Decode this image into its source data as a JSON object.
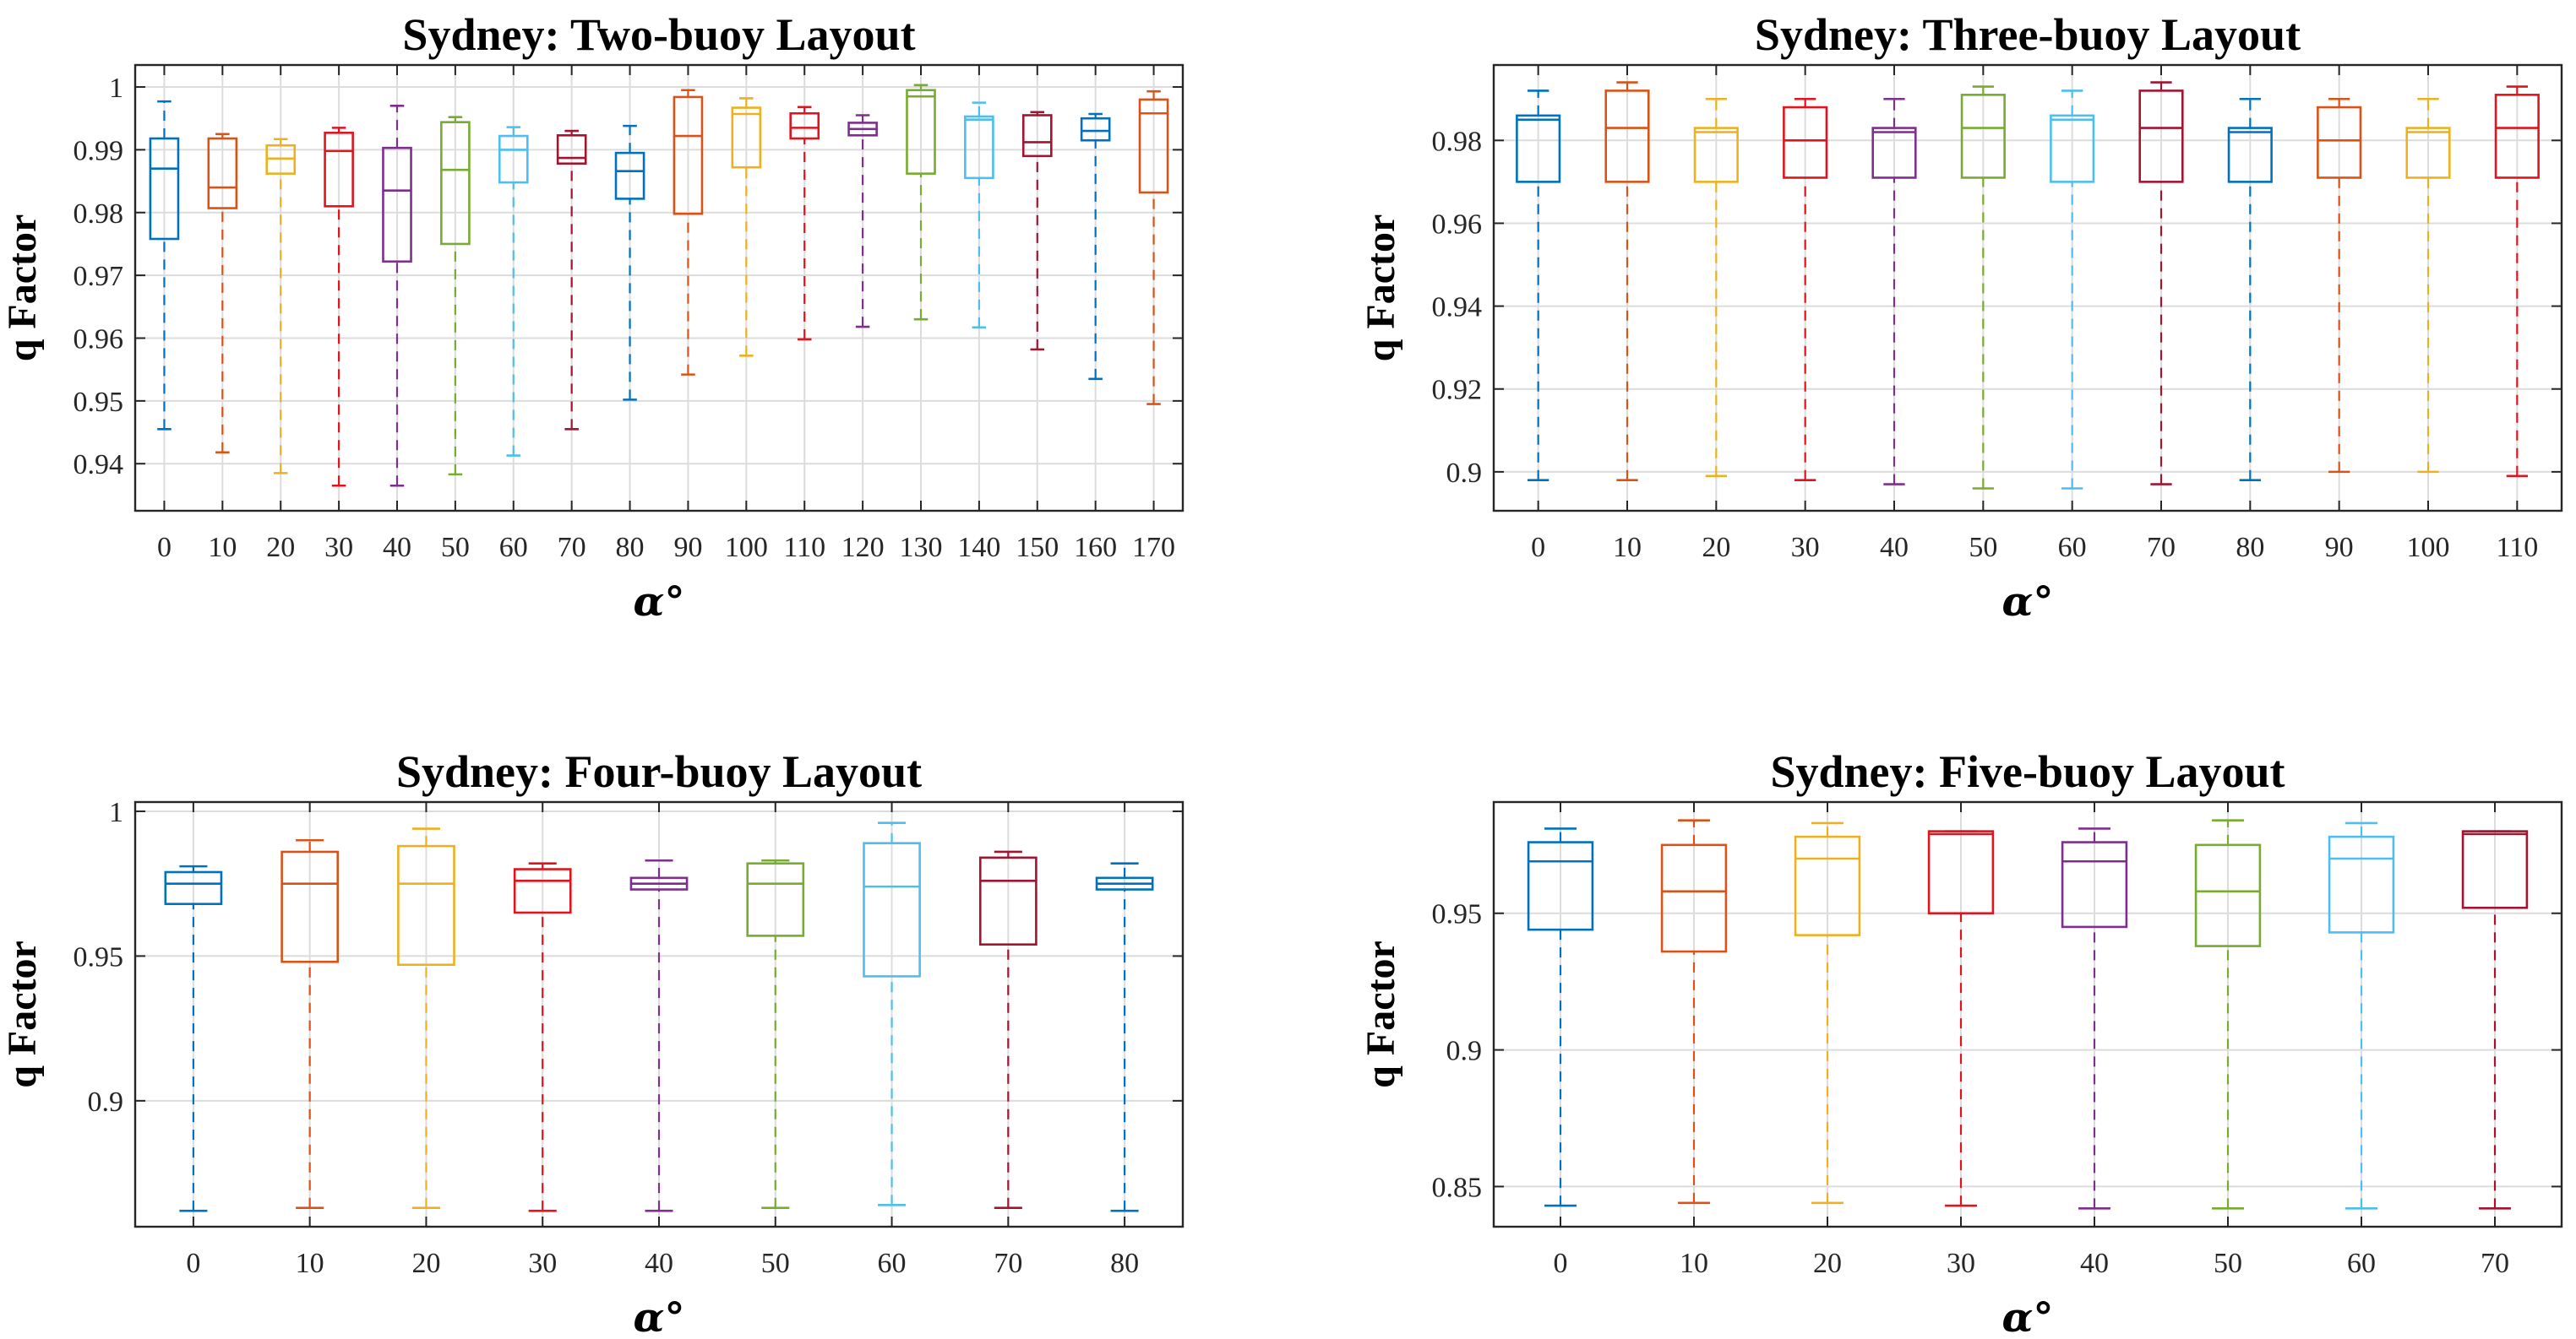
{
  "colors": [
    "#0072BD",
    "#D95319",
    "#EDB120",
    "#E0141F",
    "#7E2F8E",
    "#77AC30",
    "#4DBEEE",
    "#A2142F"
  ],
  "chart_data": [
    {
      "type": "box",
      "title": "Sydney: Two-buoy Layout",
      "xlabel": "α°",
      "ylabel": "q Factor",
      "ylim": [
        0.9325,
        1.0035
      ],
      "yticks": [
        0.94,
        0.95,
        0.96,
        0.97,
        0.98,
        0.99,
        1
      ],
      "ytick_labels": [
        "0.94",
        "0.95",
        "0.96",
        "0.97",
        "0.98",
        "0.99",
        "1"
      ],
      "categories": [
        "0",
        "10",
        "20",
        "30",
        "40",
        "50",
        "60",
        "70",
        "80",
        "90",
        "100",
        "110",
        "120",
        "130",
        "140",
        "150",
        "160",
        "170"
      ],
      "boxes": [
        {
          "min": 0.9455,
          "q1": 0.9758,
          "median": 0.987,
          "q3": 0.9918,
          "max": 0.9977
        },
        {
          "min": 0.9418,
          "q1": 0.9807,
          "median": 0.984,
          "q3": 0.9918,
          "max": 0.9925
        },
        {
          "min": 0.9385,
          "q1": 0.9862,
          "median": 0.9886,
          "q3": 0.9907,
          "max": 0.9917
        },
        {
          "min": 0.9365,
          "q1": 0.981,
          "median": 0.9898,
          "q3": 0.9927,
          "max": 0.9935
        },
        {
          "min": 0.9365,
          "q1": 0.9722,
          "median": 0.9835,
          "q3": 0.9903,
          "max": 0.997
        },
        {
          "min": 0.9383,
          "q1": 0.975,
          "median": 0.9868,
          "q3": 0.9944,
          "max": 0.9952
        },
        {
          "min": 0.9413,
          "q1": 0.9848,
          "median": 0.99,
          "q3": 0.9922,
          "max": 0.9936
        },
        {
          "min": 0.9455,
          "q1": 0.9878,
          "median": 0.9887,
          "q3": 0.9923,
          "max": 0.993
        },
        {
          "min": 0.9502,
          "q1": 0.9822,
          "median": 0.9866,
          "q3": 0.9895,
          "max": 0.9938
        },
        {
          "min": 0.9542,
          "q1": 0.9798,
          "median": 0.9922,
          "q3": 0.9984,
          "max": 0.9995
        },
        {
          "min": 0.9572,
          "q1": 0.9872,
          "median": 0.9957,
          "q3": 0.9967,
          "max": 0.9982
        },
        {
          "min": 0.9598,
          "q1": 0.9918,
          "median": 0.9935,
          "q3": 0.9958,
          "max": 0.9968
        },
        {
          "min": 0.9618,
          "q1": 0.9923,
          "median": 0.9933,
          "q3": 0.9943,
          "max": 0.9955
        },
        {
          "min": 0.963,
          "q1": 0.9862,
          "median": 0.9985,
          "q3": 0.9995,
          "max": 1.0003
        },
        {
          "min": 0.9617,
          "q1": 0.9855,
          "median": 0.9948,
          "q3": 0.9953,
          "max": 0.9975
        },
        {
          "min": 0.9582,
          "q1": 0.989,
          "median": 0.9912,
          "q3": 0.9955,
          "max": 0.996
        },
        {
          "min": 0.9535,
          "q1": 0.9915,
          "median": 0.993,
          "q3": 0.995,
          "max": 0.9957
        },
        {
          "min": 0.9495,
          "q1": 0.9832,
          "median": 0.9958,
          "q3": 0.998,
          "max": 0.9993
        }
      ]
    },
    {
      "type": "box",
      "title": "Sydney: Three-buoy Layout",
      "xlabel": "α°",
      "ylabel": "q Factor",
      "ylim": [
        0.8906,
        0.9982
      ],
      "yticks": [
        0.9,
        0.92,
        0.94,
        0.96,
        0.98
      ],
      "ytick_labels": [
        "0.9",
        "0.92",
        "0.94",
        "0.96",
        "0.98"
      ],
      "categories": [
        "0",
        "10",
        "20",
        "30",
        "40",
        "50",
        "60",
        "70",
        "80",
        "90",
        "100",
        "110"
      ],
      "boxes": [
        {
          "min": 0.898,
          "q1": 0.97,
          "median": 0.985,
          "q3": 0.986,
          "max": 0.992
        },
        {
          "min": 0.898,
          "q1": 0.97,
          "median": 0.983,
          "q3": 0.992,
          "max": 0.994
        },
        {
          "min": 0.899,
          "q1": 0.97,
          "median": 0.982,
          "q3": 0.983,
          "max": 0.99
        },
        {
          "min": 0.898,
          "q1": 0.971,
          "median": 0.98,
          "q3": 0.988,
          "max": 0.99
        },
        {
          "min": 0.897,
          "q1": 0.971,
          "median": 0.982,
          "q3": 0.983,
          "max": 0.99
        },
        {
          "min": 0.896,
          "q1": 0.971,
          "median": 0.983,
          "q3": 0.991,
          "max": 0.993
        },
        {
          "min": 0.896,
          "q1": 0.97,
          "median": 0.985,
          "q3": 0.986,
          "max": 0.992
        },
        {
          "min": 0.897,
          "q1": 0.97,
          "median": 0.983,
          "q3": 0.992,
          "max": 0.994
        },
        {
          "min": 0.898,
          "q1": 0.97,
          "median": 0.982,
          "q3": 0.983,
          "max": 0.99
        },
        {
          "min": 0.9,
          "q1": 0.971,
          "median": 0.98,
          "q3": 0.988,
          "max": 0.99
        },
        {
          "min": 0.9,
          "q1": 0.971,
          "median": 0.982,
          "q3": 0.983,
          "max": 0.99
        },
        {
          "min": 0.899,
          "q1": 0.971,
          "median": 0.983,
          "q3": 0.991,
          "max": 0.993
        }
      ]
    },
    {
      "type": "box",
      "title": "Sydney: Four-buoy Layout",
      "xlabel": "α°",
      "ylabel": "q Factor",
      "ylim": [
        0.8565,
        1.0032
      ],
      "yticks": [
        0.9,
        0.95,
        1
      ],
      "ytick_labels": [
        "0.9",
        "0.95",
        "1"
      ],
      "categories": [
        "0",
        "10",
        "20",
        "30",
        "40",
        "50",
        "60",
        "70",
        "80"
      ],
      "boxes": [
        {
          "min": 0.862,
          "q1": 0.968,
          "median": 0.975,
          "q3": 0.979,
          "max": 0.981
        },
        {
          "min": 0.863,
          "q1": 0.948,
          "median": 0.975,
          "q3": 0.986,
          "max": 0.99
        },
        {
          "min": 0.863,
          "q1": 0.947,
          "median": 0.975,
          "q3": 0.988,
          "max": 0.994
        },
        {
          "min": 0.862,
          "q1": 0.965,
          "median": 0.976,
          "q3": 0.98,
          "max": 0.982
        },
        {
          "min": 0.862,
          "q1": 0.973,
          "median": 0.975,
          "q3": 0.977,
          "max": 0.983
        },
        {
          "min": 0.863,
          "q1": 0.957,
          "median": 0.975,
          "q3": 0.982,
          "max": 0.983
        },
        {
          "min": 0.864,
          "q1": 0.943,
          "median": 0.974,
          "q3": 0.989,
          "max": 0.996
        },
        {
          "min": 0.863,
          "q1": 0.954,
          "median": 0.976,
          "q3": 0.984,
          "max": 0.986
        },
        {
          "min": 0.862,
          "q1": 0.973,
          "median": 0.975,
          "q3": 0.977,
          "max": 0.982
        }
      ]
    },
    {
      "type": "box",
      "title": "Sydney: Five-buoy Layout",
      "xlabel": "α°",
      "ylabel": "q Factor",
      "ylim": [
        0.8353,
        0.9907
      ],
      "yticks": [
        0.85,
        0.9,
        0.95
      ],
      "ytick_labels": [
        "0.85",
        "0.9",
        "0.95"
      ],
      "categories": [
        "0",
        "10",
        "20",
        "30",
        "40",
        "50",
        "60",
        "70"
      ],
      "boxes": [
        {
          "min": 0.843,
          "q1": 0.944,
          "median": 0.969,
          "q3": 0.976,
          "max": 0.981
        },
        {
          "min": 0.844,
          "q1": 0.936,
          "median": 0.958,
          "q3": 0.975,
          "max": 0.984
        },
        {
          "min": 0.844,
          "q1": 0.942,
          "median": 0.97,
          "q3": 0.978,
          "max": 0.983
        },
        {
          "min": 0.843,
          "q1": 0.95,
          "median": 0.979,
          "q3": 0.98,
          "max": 0.98
        },
        {
          "min": 0.842,
          "q1": 0.945,
          "median": 0.969,
          "q3": 0.976,
          "max": 0.981
        },
        {
          "min": 0.842,
          "q1": 0.938,
          "median": 0.958,
          "q3": 0.975,
          "max": 0.984
        },
        {
          "min": 0.842,
          "q1": 0.943,
          "median": 0.97,
          "q3": 0.978,
          "max": 0.983
        },
        {
          "min": 0.842,
          "q1": 0.952,
          "median": 0.979,
          "q3": 0.98,
          "max": 0.98
        }
      ]
    }
  ]
}
